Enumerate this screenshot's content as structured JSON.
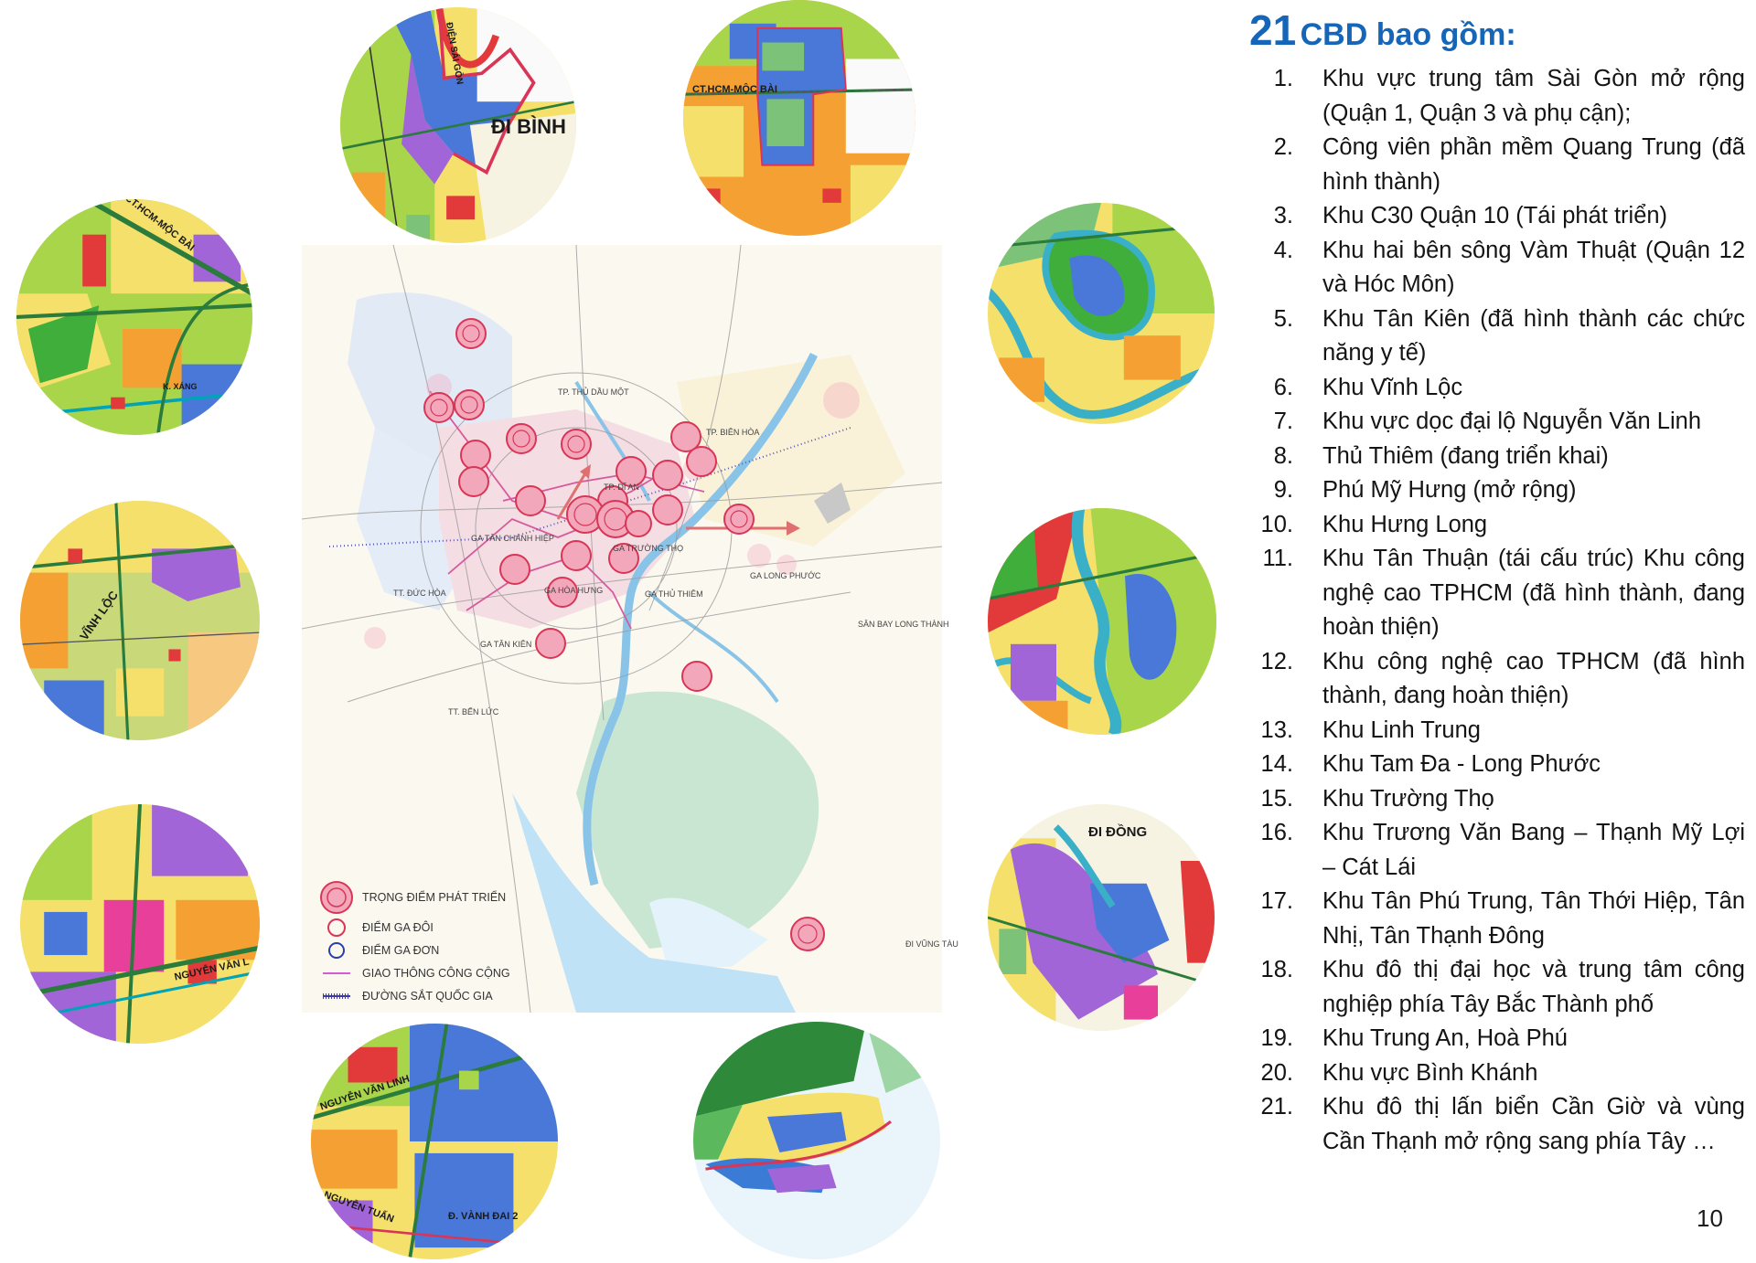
{
  "panel": {
    "title_number": "21",
    "title_text": "CBD bao gồm:",
    "items": [
      {
        "num": "1.",
        "text": "Khu vực trung tâm Sài Gòn mở rộng (Quận 1, Quận 3 và phụ cận);"
      },
      {
        "num": "2.",
        "text": "Công viên phần mềm Quang Trung (đã hình thành)"
      },
      {
        "num": "3.",
        "text": "Khu C30 Quận 10 (Tái phát triển)"
      },
      {
        "num": "4.",
        "text": "Khu hai bên sông Vàm Thuật (Quận 12 và Hóc Môn)"
      },
      {
        "num": "5.",
        "text": "Khu Tân Kiên (đã hình thành các chức năng y tế)"
      },
      {
        "num": "6.",
        "text": "Khu Vĩnh Lộc"
      },
      {
        "num": "7.",
        "text": "Khu vực dọc đại lộ Nguyễn Văn Linh"
      },
      {
        "num": "8.",
        "text": "Thủ Thiêm (đang triển khai)"
      },
      {
        "num": "9.",
        "text": "Phú Mỹ Hưng (mở rộng)"
      },
      {
        "num": "10.",
        "text": "Khu Hưng Long"
      },
      {
        "num": "11.",
        "text": "Khu Tân Thuận (tái cấu trúc) Khu công nghệ cao TPHCM (đã hình thành, đang hoàn thiện)"
      },
      {
        "num": "12.",
        "text": "Khu công nghệ cao TPHCM (đã hình thành, đang hoàn thiện)"
      },
      {
        "num": "13.",
        "text": "Khu Linh Trung"
      },
      {
        "num": "14.",
        "text": "Khu Tam Đa - Long Phước"
      },
      {
        "num": "15.",
        "text": "Khu Trường Thọ"
      },
      {
        "num": "16.",
        "text": "Khu Trương Văn Bang – Thạnh Mỹ Lợi – Cát Lái"
      },
      {
        "num": "17.",
        "text": "Khu Tân Phú Trung, Tân Thới Hiệp, Tân Nhị, Tân Thạnh Đông"
      },
      {
        "num": "18.",
        "text": "Khu đô thị đại học và trung tâm công nghiệp phía Tây Bắc Thành phố"
      },
      {
        "num": "19.",
        "text": "Khu Trung An, Hoà Phú"
      },
      {
        "num": "20.",
        "text": "Khu vực Bình Khánh"
      },
      {
        "num": "21.",
        "text": "Khu đô thị lấn biển Cần Giờ và vùng Cần Thạnh mở rộng sang phía Tây …"
      }
    ]
  },
  "page_number": "10",
  "legend": [
    {
      "label": "TRỌNG ĐIỂM PHÁT TRIỂN",
      "symbol": "development-focus"
    },
    {
      "label": "ĐIỂM GA ĐÔI",
      "symbol": "double-station"
    },
    {
      "label": "ĐIỂM GA ĐƠN",
      "symbol": "single-station"
    },
    {
      "label": "GIAO THÔNG CÔNG CỘNG",
      "symbol": "public-transit-line"
    },
    {
      "label": "ĐƯỜNG SẮT QUỐC GIA",
      "symbol": "national-railway"
    }
  ],
  "map_labels": {
    "ga_tan_chanh_hiep": "GA TÂN CHÁNH HIỆP",
    "ga_truong_tho": "GA TRƯỜNG THỌ",
    "ga_hoa_hung": "GA HÒA HƯNG",
    "ga_thu_thiem": "GA THỦ THIÊM",
    "ga_long_phuoc": "GA LONG PHƯỚC",
    "ga_tan_kien": "GA TÂN KIÊN",
    "tp_bien_hoa": "TP. BIÊN HÒA",
    "tp_duc_hoa": "TT. ĐỨC HÒA",
    "tp_ben_luc": "TT. BẾN LỨC",
    "san_bay_long_thanh": "SÂN BAY LONG THÀNH",
    "tp_thu_dau_mot": "TP. THỦ DẦU MỘT",
    "tp_di_an": "TP. DĨ AN",
    "di_vung_tau": "ĐI VŨNG TÀU"
  },
  "circle_labels": {
    "top_left": [
      "ĐI BÌNH",
      "ĐIỆN SÁI GÒN"
    ],
    "top_center": [
      "CT.HCM-MỘC BÀI"
    ],
    "left_1": [
      "CT.HCM-MỘC BÀI",
      "K. XÁNG"
    ],
    "left_2": [
      "VĨNH LỘC"
    ],
    "left_3": [
      "NGUYỄN VĂN L"
    ],
    "bottom_left": [
      "NGUYỄN VĂN LINH",
      "NGUYỄN TUẤN",
      "Đ. VÀNH ĐAI 2"
    ],
    "right_3": [
      "ĐI ĐỒNG"
    ]
  },
  "colors": {
    "title_blue": "#1565b8",
    "focus_pink": "#e8607f",
    "river_blue": "#7fb8e0",
    "green_zone": "#7cc379",
    "residential_yellow": "#f4e06a",
    "commercial_orange": "#f5a032",
    "residential_blue": "#4a78d8",
    "industrial_purple": "#a165d8",
    "red_zone": "#e23a3a"
  }
}
